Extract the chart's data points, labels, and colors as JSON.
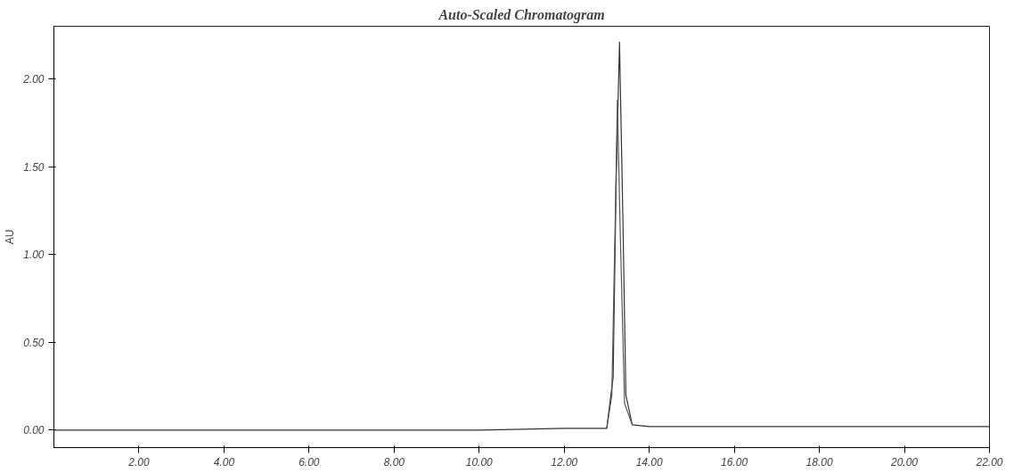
{
  "chart_data": {
    "type": "line",
    "title": "Auto-Scaled Chromatogram",
    "ylabel": "AU",
    "series": [
      {
        "color": "#333333",
        "x": [
          0,
          2,
          4,
          6,
          8,
          10,
          12,
          13.0,
          13.15,
          13.22,
          13.3,
          13.38,
          13.45,
          13.6,
          14,
          16,
          18,
          20,
          22
        ],
        "values": [
          0,
          0,
          0,
          0,
          0,
          0,
          0.01,
          0.01,
          0.3,
          1.4,
          2.21,
          1.2,
          0.2,
          0.03,
          0.02,
          0.02,
          0.02,
          0.02,
          0.02
        ]
      },
      {
        "color": "#555555",
        "x": [
          13.0,
          13.12,
          13.2,
          13.25,
          13.32,
          13.42,
          13.6
        ],
        "values": [
          0.01,
          0.2,
          1.2,
          1.88,
          1.1,
          0.15,
          0.03
        ]
      }
    ],
    "xlim": [
      0,
      22
    ],
    "ylim": [
      -0.1,
      2.3
    ],
    "xticks": [
      {
        "value": 2,
        "label": "2.00"
      },
      {
        "value": 4,
        "label": "4.00"
      },
      {
        "value": 6,
        "label": "6.00"
      },
      {
        "value": 8,
        "label": "8.00"
      },
      {
        "value": 10,
        "label": "10.00"
      },
      {
        "value": 12,
        "label": "12.00"
      },
      {
        "value": 14,
        "label": "14.00"
      },
      {
        "value": 16,
        "label": "16.00"
      },
      {
        "value": 18,
        "label": "18.00"
      },
      {
        "value": 20,
        "label": "20.00"
      },
      {
        "value": 22,
        "label": "22.00"
      }
    ],
    "yticks": [
      {
        "value": 0,
        "label": "0.00"
      },
      {
        "value": 0.5,
        "label": "0.50"
      },
      {
        "value": 1,
        "label": "1.00"
      },
      {
        "value": 1.5,
        "label": "1.50"
      },
      {
        "value": 2,
        "label": "2.00"
      }
    ],
    "grid": false,
    "marker": "none",
    "line_style": "solid"
  }
}
